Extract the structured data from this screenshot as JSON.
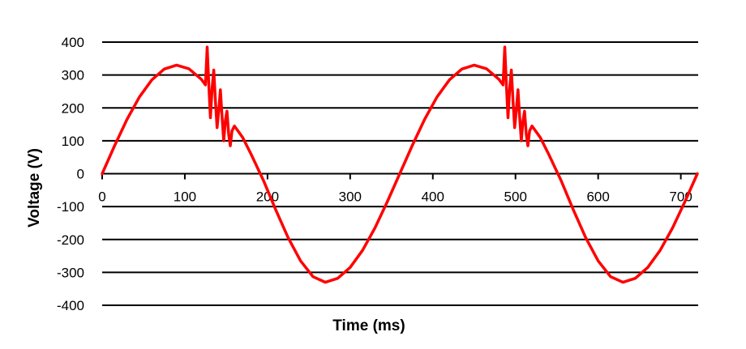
{
  "chart_data": {
    "type": "line",
    "title": "",
    "xlabel": "Time (ms)",
    "ylabel": "Voltage (V)",
    "xlim": [
      0,
      720
    ],
    "ylim": [
      -400,
      400
    ],
    "x_ticks": [
      0,
      100,
      200,
      300,
      400,
      500,
      600,
      700
    ],
    "y_ticks": [
      400,
      300,
      200,
      100,
      0,
      -100,
      -200,
      -300,
      -400
    ],
    "x_tick_labels": [
      "0",
      "100",
      "200",
      "300",
      "400",
      "500",
      "600",
      "700"
    ],
    "y_tick_labels": [
      "400",
      "300",
      "200",
      "100",
      "0",
      "-100",
      "-200",
      "-300",
      "-400"
    ],
    "grid": "horizontal",
    "legend": "none",
    "series_color": "#ff0000",
    "gridline_color": "#000000",
    "series": [
      {
        "x": [
          0,
          15,
          30,
          45,
          60,
          75,
          90,
          105,
          120,
          125,
          127,
          129,
          131,
          133,
          135,
          137,
          139,
          141,
          143,
          145,
          147,
          149,
          151,
          153,
          155,
          157,
          160,
          170,
          180,
          195,
          210,
          225,
          240,
          255,
          270,
          285,
          300,
          315,
          330,
          345,
          360,
          375,
          390,
          405,
          420,
          435,
          450,
          465,
          480,
          485,
          487,
          489,
          491,
          493,
          495,
          497,
          499,
          501,
          503,
          505,
          507,
          509,
          511,
          513,
          515,
          517,
          520,
          530,
          540,
          555,
          570,
          585,
          600,
          615,
          630,
          645,
          660,
          675,
          690,
          705,
          720
        ],
        "y": [
          0,
          85,
          165,
          233,
          285,
          318,
          330,
          319,
          287,
          270,
          385,
          270,
          170,
          260,
          315,
          220,
          140,
          190,
          255,
          175,
          100,
          160,
          190,
          120,
          85,
          130,
          145,
          110,
          60,
          -20,
          -110,
          -195,
          -265,
          -313,
          -330,
          -318,
          -285,
          -233,
          -165,
          -85,
          0,
          85,
          165,
          233,
          285,
          318,
          330,
          319,
          287,
          270,
          385,
          270,
          170,
          260,
          315,
          220,
          140,
          190,
          255,
          175,
          100,
          160,
          190,
          120,
          85,
          130,
          145,
          110,
          60,
          -20,
          -110,
          -195,
          -265,
          -313,
          -330,
          -318,
          -285,
          -233,
          -165,
          -85,
          0
        ]
      }
    ]
  }
}
